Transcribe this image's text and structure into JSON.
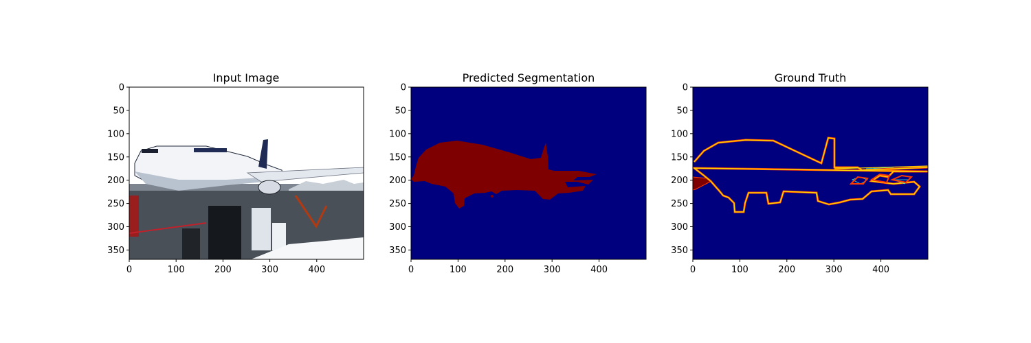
{
  "chart_data": [
    {
      "type": "image",
      "title": "Input Image",
      "xlim": [
        0,
        500
      ],
      "ylim": [
        370,
        0
      ],
      "x_ticks": [
        0,
        100,
        200,
        300,
        400
      ],
      "y_ticks": [
        0,
        50,
        100,
        150,
        200,
        250,
        300,
        350
      ],
      "content": "photo",
      "colors": {
        "sky": "#ffffff",
        "fuselage": "#f2f4f8",
        "tarmac": "#4a5058",
        "dark": "#15181c"
      }
    },
    {
      "type": "heatmap",
      "title": "Predicted Segmentation",
      "xlim": [
        0,
        500
      ],
      "ylim": [
        370,
        0
      ],
      "x_ticks": [
        0,
        100,
        200,
        300,
        400
      ],
      "y_ticks": [
        0,
        50,
        100,
        150,
        200,
        250,
        300,
        350
      ],
      "colormap": "jet",
      "colors": {
        "background": "#00007f",
        "object": "#7f0000"
      }
    },
    {
      "type": "heatmap",
      "title": "Ground Truth",
      "xlim": [
        0,
        500
      ],
      "ylim": [
        370,
        0
      ],
      "x_ticks": [
        0,
        100,
        200,
        300,
        400
      ],
      "y_ticks": [
        0,
        50,
        100,
        150,
        200,
        250,
        300,
        350
      ],
      "colormap": "jet",
      "colors": {
        "background": "#00007f",
        "object": "#7f0000",
        "edge_outer": "#ff3a00",
        "edge_mid": "#ffd400",
        "edge_inner": "#38ffc8"
      }
    }
  ]
}
